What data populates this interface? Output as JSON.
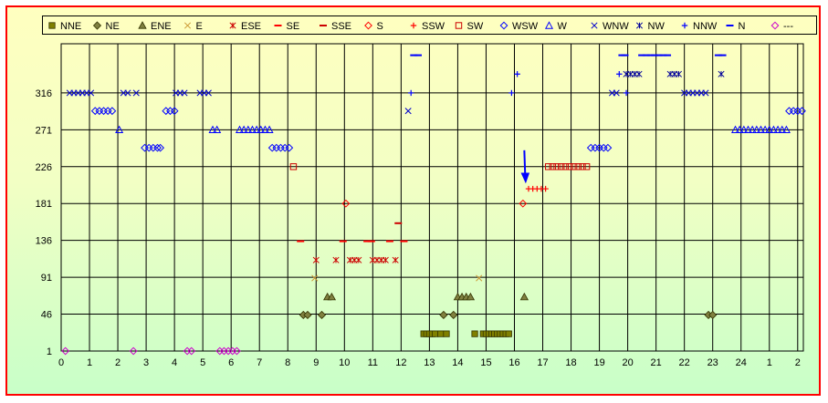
{
  "chart_data": {
    "type": "scatter",
    "x_ticks": [
      "0",
      "1",
      "2",
      "3",
      "4",
      "5",
      "6",
      "7",
      "8",
      "9",
      "10",
      "11",
      "12",
      "13",
      "14",
      "15",
      "16",
      "17",
      "18",
      "19",
      "20",
      "21",
      "22",
      "23",
      "24",
      "1",
      "2"
    ],
    "y_ticks": [
      1,
      46,
      91,
      136,
      181,
      226,
      271,
      316
    ],
    "ylim": [
      1,
      376
    ],
    "xlim": [
      0,
      26.2
    ],
    "grid": true,
    "legend_position": "top",
    "series": [
      {
        "name": "NNE",
        "marker": "square",
        "color": "#808000",
        "stroke": "#333300",
        "points": [
          [
            12.8,
            22
          ],
          [
            12.9,
            22
          ],
          [
            13.0,
            22
          ],
          [
            13.1,
            22
          ],
          [
            13.2,
            22
          ],
          [
            13.4,
            22
          ],
          [
            13.6,
            22
          ],
          [
            14.6,
            22
          ],
          [
            14.9,
            22
          ],
          [
            15.0,
            22
          ],
          [
            15.1,
            22
          ],
          [
            15.2,
            22
          ],
          [
            15.3,
            22
          ],
          [
            15.4,
            22
          ],
          [
            15.5,
            22
          ],
          [
            15.6,
            22
          ],
          [
            15.7,
            22
          ],
          [
            15.8,
            22
          ]
        ]
      },
      {
        "name": "NE",
        "marker": "diamond",
        "color": "#808040",
        "stroke": "#333300",
        "points": [
          [
            8.55,
            45
          ],
          [
            8.7,
            45
          ],
          [
            9.2,
            45
          ],
          [
            13.5,
            45
          ],
          [
            13.85,
            45
          ],
          [
            22.85,
            45
          ],
          [
            23.0,
            45
          ]
        ]
      },
      {
        "name": "ENE",
        "marker": "triangle",
        "color": "#808040",
        "stroke": "#333300",
        "points": [
          [
            9.4,
            67
          ],
          [
            9.55,
            67
          ],
          [
            14.0,
            67
          ],
          [
            14.15,
            67
          ],
          [
            14.3,
            67
          ],
          [
            14.45,
            67
          ],
          [
            16.35,
            67
          ]
        ]
      },
      {
        "name": "E",
        "marker": "x",
        "color": "#cc9933",
        "points": [
          [
            8.95,
            90
          ],
          [
            14.75,
            90
          ]
        ]
      },
      {
        "name": "ESE",
        "marker": "asterisk",
        "color": "#cc0000",
        "points": [
          [
            9.0,
            112
          ],
          [
            9.7,
            112
          ],
          [
            10.2,
            112
          ],
          [
            10.35,
            112
          ],
          [
            10.5,
            112
          ],
          [
            11.0,
            112
          ],
          [
            11.15,
            112
          ],
          [
            11.3,
            112
          ],
          [
            11.45,
            112
          ],
          [
            11.8,
            112
          ]
        ]
      },
      {
        "name": "SE",
        "marker": "dash",
        "color": "#ff0000",
        "points": [
          [
            8.45,
            135
          ],
          [
            9.95,
            135
          ],
          [
            10.8,
            135
          ],
          [
            10.95,
            135
          ],
          [
            11.6,
            135
          ],
          [
            12.1,
            135
          ]
        ]
      },
      {
        "name": "SSE",
        "marker": "dash",
        "color": "#cc0000",
        "points": [
          [
            11.9,
            157
          ]
        ]
      },
      {
        "name": "S",
        "marker": "diamond-open",
        "color": "#ff0000",
        "points": [
          [
            10.05,
            181
          ],
          [
            16.3,
            181
          ]
        ]
      },
      {
        "name": "SSW",
        "marker": "plus",
        "color": "#ff0000",
        "points": [
          [
            16.5,
            199
          ],
          [
            16.65,
            199
          ],
          [
            16.8,
            199
          ],
          [
            16.95,
            199
          ],
          [
            17.1,
            199
          ]
        ]
      },
      {
        "name": "SW",
        "marker": "square-open",
        "color": "#cc0000",
        "points": [
          [
            8.2,
            226
          ],
          [
            17.2,
            226
          ],
          [
            17.35,
            226
          ],
          [
            17.5,
            226
          ],
          [
            17.65,
            226
          ],
          [
            17.8,
            226
          ],
          [
            17.95,
            226
          ],
          [
            18.1,
            226
          ],
          [
            18.25,
            226
          ],
          [
            18.4,
            226
          ],
          [
            18.55,
            226
          ]
        ]
      },
      {
        "name": "WSW",
        "marker": "diamond-open",
        "color": "#0000ff",
        "points": [
          [
            1.2,
            294
          ],
          [
            1.35,
            294
          ],
          [
            1.5,
            294
          ],
          [
            1.65,
            294
          ],
          [
            1.8,
            294
          ],
          [
            2.95,
            249
          ],
          [
            3.1,
            249
          ],
          [
            3.25,
            249
          ],
          [
            3.4,
            249
          ],
          [
            3.5,
            249
          ],
          [
            3.7,
            294
          ],
          [
            3.85,
            294
          ],
          [
            4.0,
            294
          ],
          [
            7.45,
            249
          ],
          [
            7.6,
            249
          ],
          [
            7.75,
            249
          ],
          [
            7.9,
            249
          ],
          [
            8.05,
            249
          ],
          [
            18.7,
            249
          ],
          [
            18.85,
            249
          ],
          [
            19.0,
            249
          ],
          [
            19.15,
            249
          ],
          [
            19.3,
            249
          ],
          [
            25.7,
            294
          ],
          [
            25.85,
            294
          ],
          [
            26.0,
            294
          ],
          [
            26.15,
            294
          ]
        ]
      },
      {
        "name": "W",
        "marker": "triangle-open",
        "color": "#0000ff",
        "points": [
          [
            2.05,
            271
          ],
          [
            5.35,
            271
          ],
          [
            5.5,
            271
          ],
          [
            6.3,
            271
          ],
          [
            6.45,
            271
          ],
          [
            6.6,
            271
          ],
          [
            6.75,
            271
          ],
          [
            6.9,
            271
          ],
          [
            7.05,
            271
          ],
          [
            7.2,
            271
          ],
          [
            7.35,
            271
          ],
          [
            23.8,
            271
          ],
          [
            23.95,
            271
          ],
          [
            24.1,
            271
          ],
          [
            24.25,
            271
          ],
          [
            24.4,
            271
          ],
          [
            24.55,
            271
          ],
          [
            24.7,
            271
          ],
          [
            24.85,
            271
          ],
          [
            25.0,
            271
          ],
          [
            25.15,
            271
          ],
          [
            25.3,
            271
          ],
          [
            25.45,
            271
          ],
          [
            25.6,
            271
          ]
        ]
      },
      {
        "name": "WNW",
        "marker": "x",
        "color": "#0000cc",
        "points": [
          [
            0.3,
            316
          ],
          [
            0.45,
            316
          ],
          [
            0.6,
            316
          ],
          [
            0.75,
            316
          ],
          [
            0.9,
            316
          ],
          [
            1.05,
            316
          ],
          [
            2.2,
            316
          ],
          [
            2.35,
            316
          ],
          [
            2.65,
            316
          ],
          [
            4.05,
            316
          ],
          [
            4.2,
            316
          ],
          [
            4.35,
            316
          ],
          [
            4.9,
            316
          ],
          [
            5.05,
            316
          ],
          [
            5.2,
            316
          ],
          [
            19.45,
            316
          ],
          [
            19.6,
            316
          ],
          [
            22.0,
            316
          ],
          [
            22.15,
            316
          ],
          [
            22.3,
            316
          ],
          [
            22.45,
            316
          ],
          [
            22.6,
            316
          ],
          [
            22.75,
            316
          ],
          [
            12.25,
            294
          ]
        ]
      },
      {
        "name": "NW",
        "marker": "asterisk",
        "color": "#000099",
        "points": [
          [
            19.95,
            339
          ],
          [
            20.1,
            339
          ],
          [
            20.25,
            339
          ],
          [
            20.4,
            339
          ],
          [
            21.5,
            339
          ],
          [
            21.65,
            339
          ],
          [
            21.8,
            339
          ],
          [
            23.3,
            339
          ]
        ]
      },
      {
        "name": "NNW",
        "marker": "plus",
        "color": "#0000ff",
        "points": [
          [
            12.35,
            316
          ],
          [
            15.9,
            316
          ],
          [
            16.1,
            339
          ],
          [
            19.7,
            339
          ],
          [
            19.95,
            316
          ]
        ]
      },
      {
        "name": "N",
        "marker": "dash",
        "color": "#0000ff",
        "points": [
          [
            12.45,
            362
          ],
          [
            12.6,
            362
          ],
          [
            19.8,
            362
          ],
          [
            19.9,
            362
          ],
          [
            20.5,
            362
          ],
          [
            20.65,
            362
          ],
          [
            20.8,
            362
          ],
          [
            20.95,
            362
          ],
          [
            21.1,
            362
          ],
          [
            21.25,
            362
          ],
          [
            21.4,
            362
          ],
          [
            23.2,
            362
          ],
          [
            23.35,
            362
          ]
        ]
      },
      {
        "name": "---",
        "marker": "diamond-open",
        "color": "#cc00cc",
        "points": [
          [
            0.15,
            1
          ],
          [
            2.55,
            1
          ],
          [
            4.45,
            1
          ],
          [
            4.6,
            1
          ],
          [
            5.6,
            1
          ],
          [
            5.75,
            1
          ],
          [
            5.9,
            1
          ],
          [
            6.05,
            1
          ],
          [
            6.2,
            1
          ]
        ]
      }
    ]
  }
}
